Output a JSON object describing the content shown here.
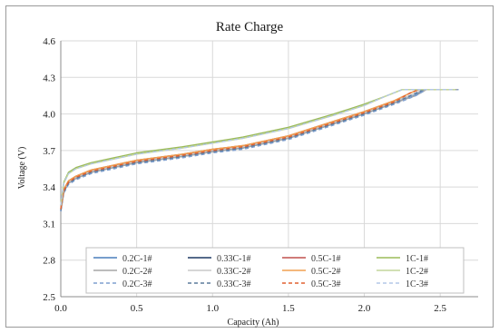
{
  "chart_data": {
    "type": "line",
    "title": "Rate Charge",
    "xlabel": "Capacity (Ah)",
    "ylabel": "Voltage (V)",
    "xlim": [
      0.0,
      2.75
    ],
    "ylim": [
      2.5,
      4.6
    ],
    "xticks": [
      "0.0",
      "0.5",
      "1.0",
      "1.5",
      "2.0",
      "2.5"
    ],
    "yticks": [
      "2.5",
      "2.8",
      "3.1",
      "3.4",
      "3.7",
      "4.0",
      "4.3",
      "4.6"
    ],
    "grid": true,
    "legend_position": "bottom-inside",
    "series": [
      {
        "name": "0.2C-1#",
        "color": "#4a7ebb",
        "dash": "solid",
        "x": [
          0.0,
          0.02,
          0.05,
          0.1,
          0.2,
          0.5,
          0.8,
          1.0,
          1.2,
          1.5,
          1.8,
          2.0,
          2.2,
          2.33,
          2.4,
          2.62
        ],
        "y": [
          3.2,
          3.36,
          3.43,
          3.47,
          3.52,
          3.6,
          3.65,
          3.69,
          3.72,
          3.8,
          3.92,
          4.0,
          4.09,
          4.15,
          4.2,
          4.2
        ]
      },
      {
        "name": "0.2C-2#",
        "color": "#a6a6a6",
        "dash": "solid",
        "x": [
          0.0,
          0.02,
          0.05,
          0.1,
          0.2,
          0.5,
          0.8,
          1.0,
          1.2,
          1.5,
          1.8,
          2.0,
          2.2,
          2.34,
          2.41,
          2.62
        ],
        "y": [
          3.2,
          3.36,
          3.43,
          3.47,
          3.52,
          3.6,
          3.65,
          3.69,
          3.72,
          3.8,
          3.92,
          4.0,
          4.09,
          4.15,
          4.2,
          4.2
        ]
      },
      {
        "name": "0.2C-3#",
        "color": "#7f9fcf",
        "dash": "dashed",
        "x": [
          0.0,
          0.02,
          0.05,
          0.1,
          0.2,
          0.5,
          0.8,
          1.0,
          1.2,
          1.5,
          1.8,
          2.0,
          2.2,
          2.34,
          2.41,
          2.62
        ],
        "y": [
          3.2,
          3.35,
          3.42,
          3.46,
          3.51,
          3.59,
          3.64,
          3.68,
          3.71,
          3.79,
          3.91,
          3.99,
          4.08,
          4.15,
          4.2,
          4.2
        ]
      },
      {
        "name": "0.33C-1#",
        "color": "#1f3864",
        "dash": "solid",
        "x": [
          0.0,
          0.02,
          0.05,
          0.1,
          0.2,
          0.5,
          0.8,
          1.0,
          1.2,
          1.5,
          1.8,
          2.0,
          2.2,
          2.32,
          2.39,
          2.6
        ],
        "y": [
          3.21,
          3.37,
          3.44,
          3.48,
          3.53,
          3.61,
          3.66,
          3.7,
          3.73,
          3.81,
          3.93,
          4.01,
          4.1,
          4.16,
          4.2,
          4.2
        ]
      },
      {
        "name": "0.33C-2#",
        "color": "#c9c9c9",
        "dash": "solid",
        "x": [
          0.0,
          0.02,
          0.05,
          0.1,
          0.2,
          0.5,
          0.8,
          1.0,
          1.2,
          1.5,
          1.8,
          2.0,
          2.2,
          2.32,
          2.39,
          2.6
        ],
        "y": [
          3.21,
          3.37,
          3.44,
          3.48,
          3.53,
          3.61,
          3.66,
          3.7,
          3.73,
          3.81,
          3.93,
          4.01,
          4.1,
          4.16,
          4.2,
          4.2
        ]
      },
      {
        "name": "0.33C-3#",
        "color": "#5b7b9b",
        "dash": "dashed",
        "x": [
          0.0,
          0.02,
          0.05,
          0.1,
          0.2,
          0.5,
          0.8,
          1.0,
          1.2,
          1.5,
          1.8,
          2.0,
          2.2,
          2.32,
          2.39,
          2.6
        ],
        "y": [
          3.21,
          3.36,
          3.43,
          3.47,
          3.52,
          3.6,
          3.65,
          3.69,
          3.72,
          3.8,
          3.92,
          4.0,
          4.09,
          4.16,
          4.2,
          4.2
        ]
      },
      {
        "name": "0.5C-1#",
        "color": "#c0504d",
        "dash": "solid",
        "x": [
          0.0,
          0.02,
          0.05,
          0.1,
          0.2,
          0.5,
          0.8,
          1.0,
          1.2,
          1.5,
          1.8,
          2.0,
          2.2,
          2.3,
          2.36,
          2.58
        ],
        "y": [
          3.22,
          3.38,
          3.45,
          3.49,
          3.54,
          3.62,
          3.67,
          3.71,
          3.74,
          3.82,
          3.94,
          4.02,
          4.11,
          4.17,
          4.2,
          4.2
        ]
      },
      {
        "name": "0.5C-2#",
        "color": "#f0a050",
        "dash": "solid",
        "x": [
          0.0,
          0.02,
          0.05,
          0.1,
          0.2,
          0.5,
          0.8,
          1.0,
          1.2,
          1.5,
          1.8,
          2.0,
          2.2,
          2.3,
          2.36,
          2.58
        ],
        "y": [
          3.22,
          3.38,
          3.45,
          3.49,
          3.54,
          3.62,
          3.67,
          3.71,
          3.74,
          3.82,
          3.94,
          4.02,
          4.11,
          4.17,
          4.2,
          4.2
        ]
      },
      {
        "name": "0.5C-3#",
        "color": "#e06030",
        "dash": "dashed",
        "x": [
          0.0,
          0.02,
          0.05,
          0.1,
          0.2,
          0.5,
          0.8,
          1.0,
          1.2,
          1.5,
          1.8,
          2.0,
          2.2,
          2.3,
          2.36,
          2.58
        ],
        "y": [
          3.22,
          3.37,
          3.44,
          3.48,
          3.53,
          3.61,
          3.66,
          3.7,
          3.73,
          3.81,
          3.93,
          4.01,
          4.1,
          4.17,
          4.2,
          4.2
        ]
      },
      {
        "name": "1C-1#",
        "color": "#9bbb59",
        "dash": "solid",
        "x": [
          0.0,
          0.02,
          0.05,
          0.1,
          0.2,
          0.5,
          0.8,
          1.0,
          1.2,
          1.5,
          1.8,
          2.0,
          2.15,
          2.25,
          2.6
        ],
        "y": [
          3.25,
          3.44,
          3.52,
          3.56,
          3.6,
          3.68,
          3.73,
          3.77,
          3.81,
          3.89,
          4.0,
          4.08,
          4.15,
          4.2,
          4.2
        ]
      },
      {
        "name": "1C-2#",
        "color": "#c3d69b",
        "dash": "solid",
        "x": [
          0.0,
          0.02,
          0.05,
          0.1,
          0.2,
          0.5,
          0.8,
          1.0,
          1.2,
          1.5,
          1.8,
          2.0,
          2.15,
          2.25,
          2.6
        ],
        "y": [
          3.25,
          3.43,
          3.51,
          3.55,
          3.59,
          3.67,
          3.72,
          3.76,
          3.8,
          3.88,
          3.99,
          4.07,
          4.15,
          4.2,
          4.2
        ]
      },
      {
        "name": "1C-3#",
        "color": "#b4c7e7",
        "dash": "dashed",
        "x": [
          0.0,
          0.02,
          0.05,
          0.1,
          0.2,
          0.5,
          0.8,
          1.0,
          1.2,
          1.5,
          1.8,
          2.0,
          2.15,
          2.25,
          2.6
        ],
        "y": [
          3.25,
          3.43,
          3.51,
          3.55,
          3.59,
          3.67,
          3.72,
          3.76,
          3.8,
          3.88,
          3.99,
          4.07,
          4.15,
          4.2,
          4.2
        ]
      }
    ],
    "legend_columns": [
      [
        "0.2C-1#",
        "0.2C-2#",
        "0.2C-3#"
      ],
      [
        "0.33C-1#",
        "0.33C-2#",
        "0.33C-3#"
      ],
      [
        "0.5C-1#",
        "0.5C-2#",
        "0.5C-3#"
      ],
      [
        "1C-1#",
        "1C-2#",
        "1C-3#"
      ]
    ]
  }
}
